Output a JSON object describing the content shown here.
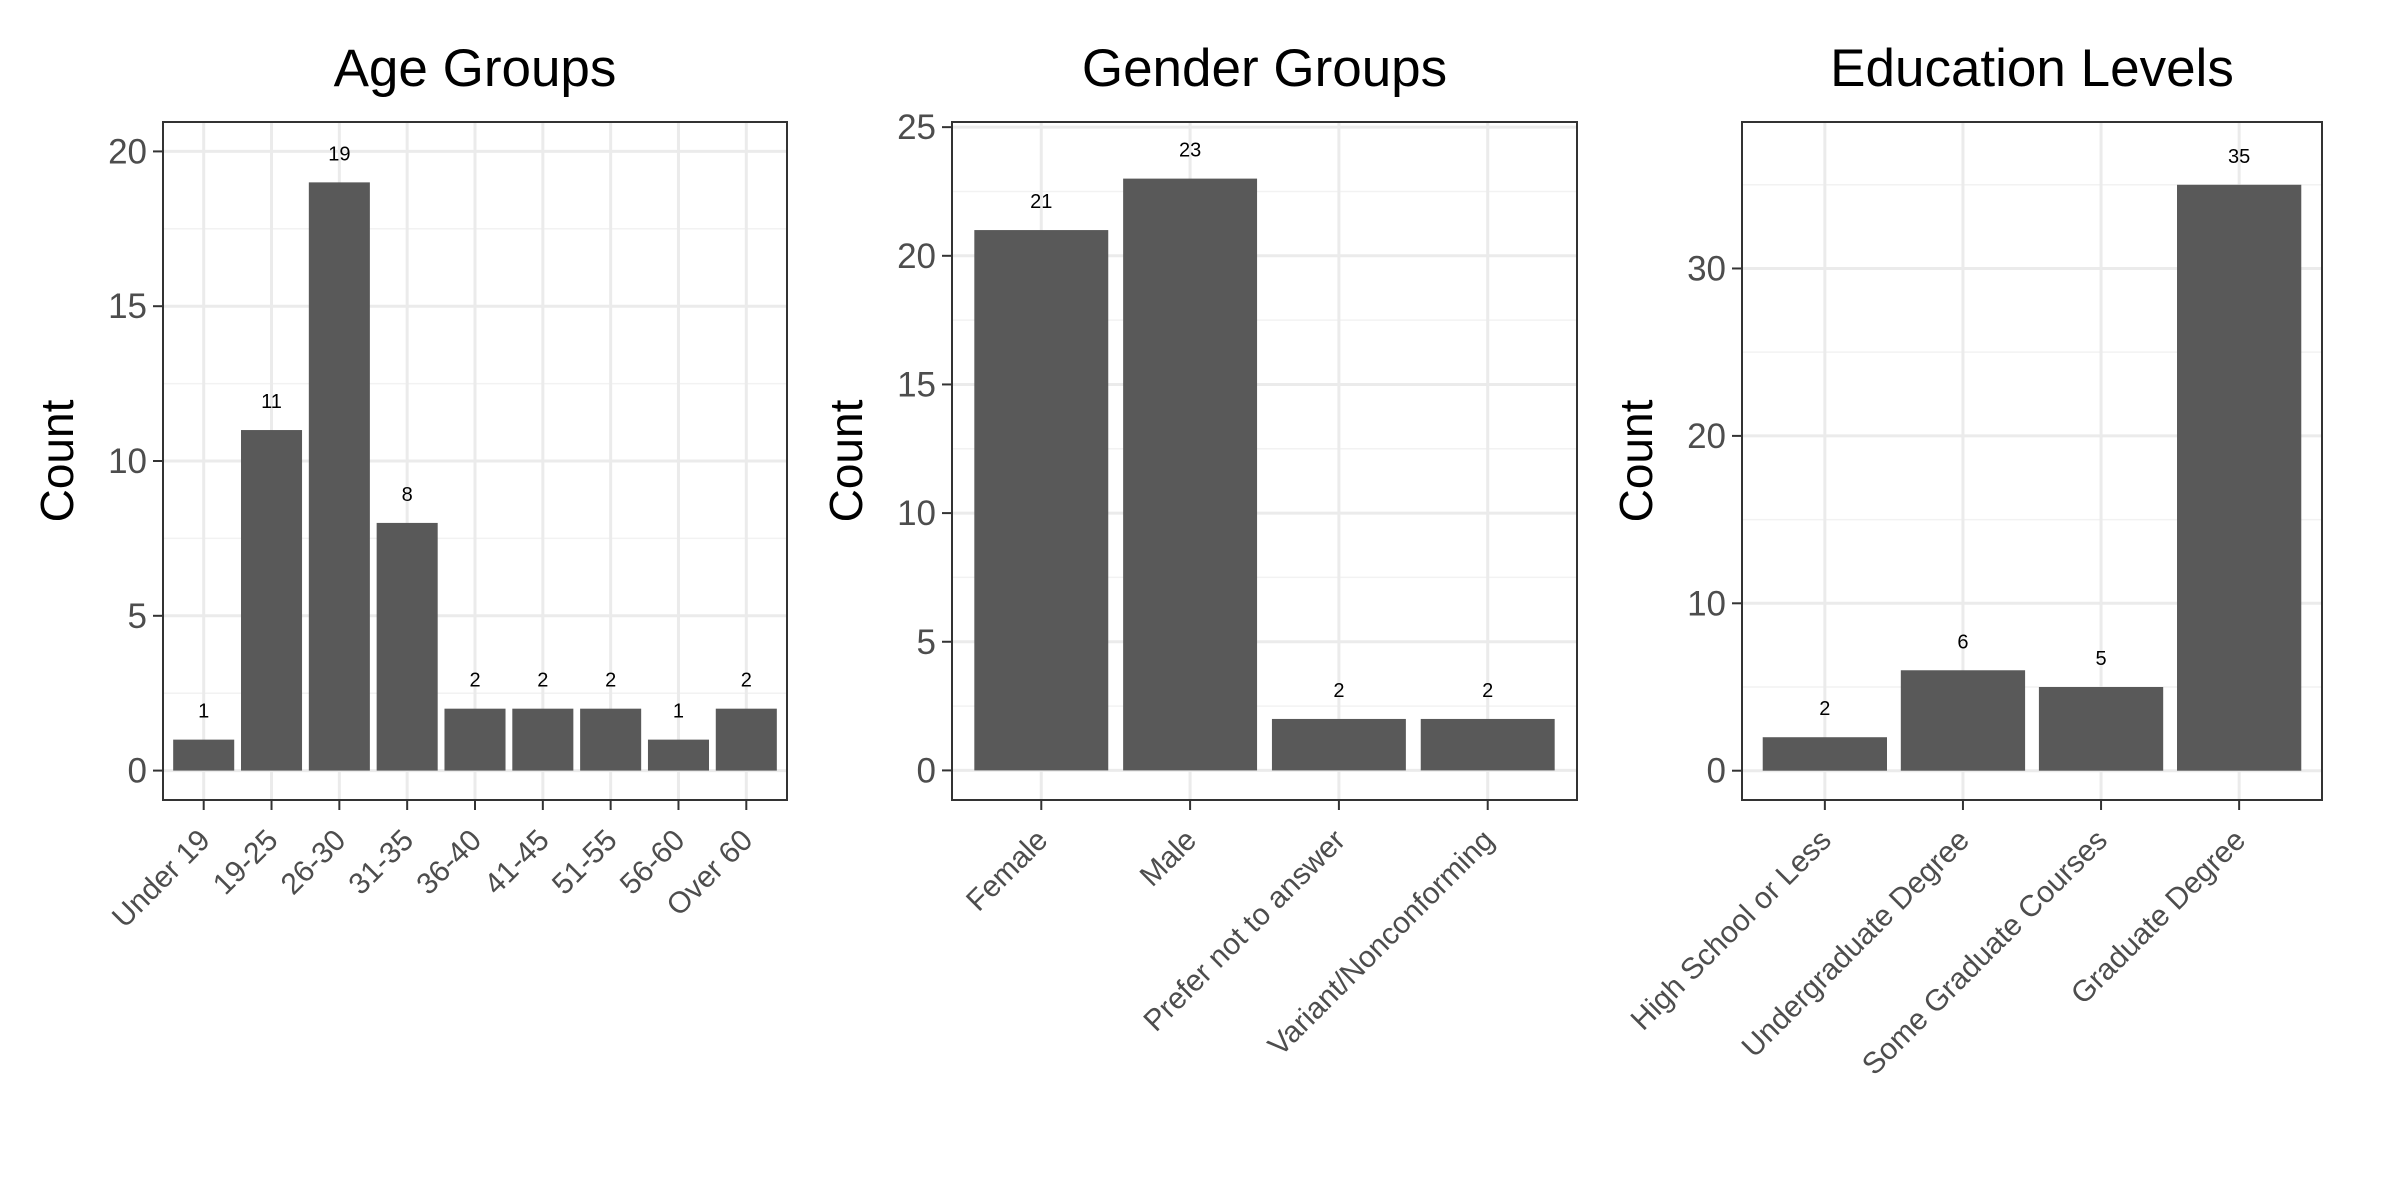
{
  "chart_data": [
    {
      "type": "bar",
      "title": "Age Groups",
      "xlabel": "",
      "ylabel": "Count",
      "categories": [
        "Under 19",
        "19-25",
        "26-30",
        "31-35",
        "36-40",
        "41-45",
        "51-55",
        "56-60",
        "Over 60"
      ],
      "values": [
        1,
        11,
        19,
        8,
        2,
        2,
        2,
        1,
        2
      ],
      "value_labels": [
        "1",
        "11",
        "19",
        "8",
        "2",
        "2",
        "2",
        "1",
        "2"
      ],
      "yticks": [
        0,
        5,
        10,
        15,
        20
      ],
      "ylim": [
        -0.95,
        20.95
      ],
      "grid": true,
      "bar_color": "#595959"
    },
    {
      "type": "bar",
      "title": "Gender Groups",
      "xlabel": "",
      "ylabel": "Count",
      "categories": [
        "Female",
        "Male",
        "Prefer not to answer",
        "Variant/Nonconforming"
      ],
      "values": [
        21,
        23,
        2,
        2
      ],
      "value_labels": [
        "21",
        "23",
        "2",
        "2"
      ],
      "yticks": [
        0,
        5,
        10,
        15,
        20,
        25
      ],
      "ylim": [
        -1.15,
        25.2
      ],
      "grid": true,
      "bar_color": "#595959"
    },
    {
      "type": "bar",
      "title": "Education Levels",
      "xlabel": "",
      "ylabel": "Count",
      "categories": [
        "High School or Less",
        "Undergraduate Degree",
        "Some Graduate Courses",
        "Graduate Degree"
      ],
      "values": [
        2,
        6,
        5,
        35
      ],
      "value_labels": [
        "2",
        "6",
        "5",
        "35"
      ],
      "yticks": [
        0,
        10,
        20,
        30
      ],
      "ylim": [
        -1.75,
        38.75
      ],
      "grid": true,
      "bar_color": "#595959"
    }
  ]
}
